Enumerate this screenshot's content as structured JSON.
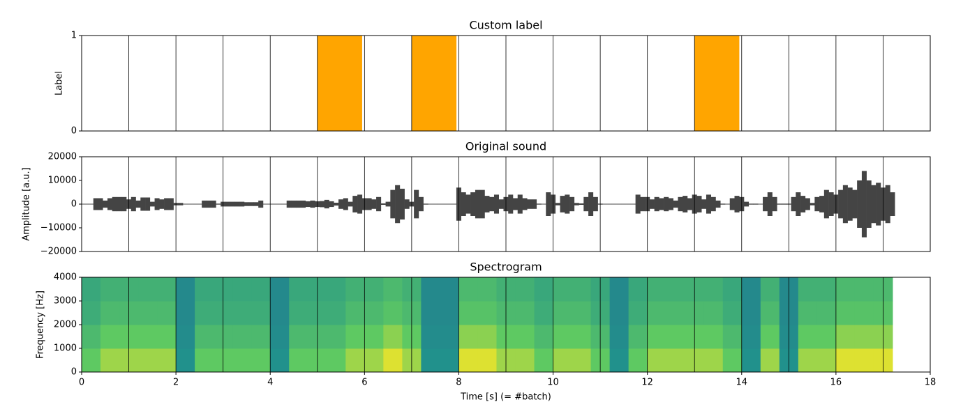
{
  "chart_data": [
    {
      "type": "bar",
      "title": "Custom label",
      "ylabel": "Label",
      "x": [
        0,
        1,
        2,
        3,
        4,
        5,
        6,
        7,
        8,
        9,
        10,
        11,
        12,
        13,
        14,
        15,
        16,
        17
      ],
      "values": [
        0,
        0,
        0,
        0,
        0,
        1,
        0,
        1,
        0,
        0,
        0,
        0,
        0,
        1,
        0,
        0,
        0,
        0
      ],
      "bar_width": 0.95,
      "color": "#ffa500",
      "xlim": [
        0,
        18
      ],
      "ylim": [
        0,
        1
      ],
      "yticks": [
        0,
        1
      ],
      "vlines": [
        1,
        2,
        3,
        4,
        5,
        6,
        7,
        8,
        9,
        10,
        11,
        12,
        13,
        14,
        15,
        16,
        17
      ]
    },
    {
      "type": "waveform",
      "title": "Original sound",
      "ylabel": "Amplitude [a.u.]",
      "color": "#444444",
      "x": [
        0.0,
        0.1,
        0.2,
        0.3,
        0.4,
        0.5,
        0.6,
        0.7,
        0.8,
        0.9,
        1.0,
        1.1,
        1.2,
        1.3,
        1.4,
        1.5,
        1.6,
        1.7,
        1.8,
        1.9,
        2.0,
        2.1,
        2.2,
        2.3,
        2.4,
        2.5,
        2.6,
        2.7,
        2.8,
        2.9,
        3.0,
        3.1,
        3.2,
        3.3,
        3.4,
        3.5,
        3.6,
        3.7,
        3.8,
        3.9,
        4.0,
        4.1,
        4.2,
        4.3,
        4.4,
        4.5,
        4.6,
        4.7,
        4.8,
        4.9,
        5.0,
        5.1,
        5.2,
        5.3,
        5.4,
        5.5,
        5.6,
        5.7,
        5.8,
        5.9,
        6.0,
        6.1,
        6.2,
        6.3,
        6.4,
        6.5,
        6.6,
        6.7,
        6.8,
        6.9,
        7.0,
        7.1,
        7.2,
        7.3,
        7.4,
        7.5,
        7.6,
        7.7,
        7.8,
        7.9,
        8.0,
        8.1,
        8.2,
        8.3,
        8.4,
        8.5,
        8.6,
        8.7,
        8.8,
        8.9,
        9.0,
        9.1,
        9.2,
        9.3,
        9.4,
        9.5,
        9.6,
        9.7,
        9.8,
        9.9,
        10.0,
        10.1,
        10.2,
        10.3,
        10.4,
        10.5,
        10.6,
        10.7,
        10.8,
        10.9,
        11.0,
        11.1,
        11.2,
        11.3,
        11.4,
        11.5,
        11.6,
        11.7,
        11.8,
        11.9,
        12.0,
        12.1,
        12.2,
        12.3,
        12.4,
        12.5,
        12.6,
        12.7,
        12.8,
        12.9,
        13.0,
        13.1,
        13.2,
        13.3,
        13.4,
        13.5,
        13.6,
        13.7,
        13.8,
        13.9,
        14.0,
        14.1,
        14.2,
        14.3,
        14.4,
        14.5,
        14.6,
        14.7,
        14.8,
        14.9,
        15.0,
        15.1,
        15.2,
        15.3,
        15.4,
        15.5,
        15.6,
        15.7,
        15.8,
        15.9,
        16.0,
        16.1,
        16.2,
        16.3,
        16.4,
        16.5,
        16.6,
        16.7,
        16.8,
        16.9,
        17.0,
        17.1,
        17.2
      ],
      "values": [
        0,
        0,
        0,
        2500,
        2500,
        1500,
        2500,
        3000,
        3000,
        3000,
        2000,
        3000,
        1500,
        2800,
        2800,
        1000,
        2500,
        2000,
        2500,
        2500,
        500,
        500,
        100,
        100,
        100,
        100,
        1500,
        1500,
        1500,
        200,
        1000,
        1000,
        1000,
        1000,
        1000,
        800,
        800,
        800,
        1500,
        100,
        100,
        100,
        100,
        100,
        1500,
        1500,
        1500,
        1500,
        1200,
        1500,
        1200,
        1300,
        1800,
        1200,
        600,
        2000,
        2500,
        1000,
        3500,
        4000,
        2500,
        2500,
        2000,
        3000,
        300,
        1000,
        6000,
        8000,
        6500,
        2000,
        1000,
        6000,
        3000,
        200,
        100,
        100,
        100,
        100,
        100,
        100,
        7000,
        5000,
        4000,
        5000,
        6000,
        6000,
        3500,
        3000,
        4000,
        2000,
        3000,
        4000,
        2500,
        4000,
        2500,
        2000,
        2000,
        200,
        100,
        5000,
        4000,
        500,
        3500,
        4000,
        3000,
        500,
        300,
        3000,
        5000,
        3000,
        200,
        100,
        100,
        100,
        100,
        100,
        100,
        100,
        4000,
        3000,
        3000,
        2000,
        3000,
        2500,
        3000,
        2500,
        1500,
        3000,
        3500,
        2500,
        4000,
        3500,
        2000,
        4000,
        3000,
        1500,
        200,
        100,
        2500,
        3500,
        3000,
        1000,
        200,
        200,
        100,
        3000,
        5000,
        3000,
        200,
        200,
        200,
        3000,
        5000,
        3500,
        2500,
        500,
        3000,
        3500,
        6000,
        5000,
        4000,
        6000,
        8000,
        7000,
        6000,
        10000,
        14000,
        10000,
        8000,
        9000,
        7000,
        8000,
        5000
      ],
      "xlim": [
        0,
        18
      ],
      "ylim": [
        -20000,
        20000
      ],
      "yticks": [
        {
          "value": -20000,
          "label": "−20000"
        },
        {
          "value": -10000,
          "label": "−10000"
        },
        0,
        10000,
        20000
      ],
      "vlines": [
        1,
        2,
        3,
        4,
        5,
        6,
        7,
        8,
        9,
        10,
        11,
        12,
        13,
        14,
        15,
        16,
        17
      ]
    },
    {
      "type": "heatmap",
      "title": "Spectrogram",
      "ylabel": "Frequency [Hz]",
      "xlabel": "Time [s] (= #batch)",
      "colormap": "viridis",
      "xbins": [
        0.0,
        0.4,
        0.8,
        1.2,
        1.6,
        2.0,
        2.4,
        2.8,
        3.2,
        3.6,
        4.0,
        4.4,
        4.8,
        5.2,
        5.6,
        6.0,
        6.4,
        6.8,
        7.2,
        7.6,
        8.0,
        8.4,
        8.8,
        9.2,
        9.6,
        10.0,
        10.4,
        10.8,
        11.2,
        11.6,
        12.0,
        12.4,
        12.8,
        13.2,
        13.6,
        14.0,
        14.4,
        14.8,
        15.2,
        15.6,
        16.0,
        16.4,
        16.8,
        17.2
      ],
      "ybins": [
        0,
        1000,
        2000,
        3000,
        4000
      ],
      "values": [
        [
          0.75,
          0.85,
          0.85,
          0.85,
          0.85,
          0.5,
          0.75,
          0.75,
          0.75,
          0.75,
          0.5,
          0.75,
          0.75,
          0.75,
          0.85,
          0.85,
          0.95,
          0.85,
          0.5,
          0.5,
          0.95,
          0.95,
          0.85,
          0.85,
          0.75,
          0.85,
          0.85,
          0.75,
          0.5,
          0.75,
          0.85,
          0.85,
          0.85,
          0.85,
          0.75,
          0.5,
          0.85,
          0.5,
          0.85,
          0.85,
          0.95,
          0.95,
          0.95
        ],
        [
          0.68,
          0.75,
          0.75,
          0.75,
          0.75,
          0.48,
          0.68,
          0.68,
          0.68,
          0.68,
          0.48,
          0.68,
          0.68,
          0.68,
          0.75,
          0.75,
          0.82,
          0.75,
          0.48,
          0.48,
          0.82,
          0.82,
          0.75,
          0.75,
          0.68,
          0.75,
          0.75,
          0.68,
          0.48,
          0.68,
          0.75,
          0.75,
          0.75,
          0.75,
          0.68,
          0.48,
          0.75,
          0.48,
          0.75,
          0.75,
          0.82,
          0.82,
          0.82
        ],
        [
          0.62,
          0.68,
          0.68,
          0.68,
          0.68,
          0.47,
          0.62,
          0.62,
          0.62,
          0.62,
          0.47,
          0.62,
          0.62,
          0.62,
          0.68,
          0.68,
          0.72,
          0.68,
          0.47,
          0.47,
          0.72,
          0.72,
          0.68,
          0.68,
          0.62,
          0.68,
          0.68,
          0.62,
          0.47,
          0.62,
          0.68,
          0.68,
          0.68,
          0.68,
          0.62,
          0.47,
          0.68,
          0.47,
          0.68,
          0.68,
          0.72,
          0.72,
          0.72
        ],
        [
          0.6,
          0.64,
          0.64,
          0.64,
          0.64,
          0.47,
          0.6,
          0.6,
          0.6,
          0.6,
          0.47,
          0.6,
          0.6,
          0.6,
          0.64,
          0.64,
          0.68,
          0.64,
          0.47,
          0.47,
          0.68,
          0.68,
          0.64,
          0.64,
          0.6,
          0.64,
          0.64,
          0.6,
          0.47,
          0.6,
          0.64,
          0.64,
          0.64,
          0.64,
          0.6,
          0.47,
          0.64,
          0.47,
          0.64,
          0.64,
          0.68,
          0.68,
          0.68
        ]
      ],
      "zlim": [
        0,
        1
      ],
      "xlim": [
        0,
        18
      ],
      "xticks": [
        0,
        2,
        4,
        6,
        8,
        10,
        12,
        14,
        16,
        18
      ],
      "ylim": [
        0,
        4000
      ],
      "yticks": [
        0,
        1000,
        2000,
        3000,
        4000
      ],
      "vlines": [
        1,
        2,
        3,
        4,
        5,
        6,
        7,
        8,
        9,
        10,
        11,
        12,
        13,
        14,
        15,
        16,
        17
      ]
    }
  ]
}
